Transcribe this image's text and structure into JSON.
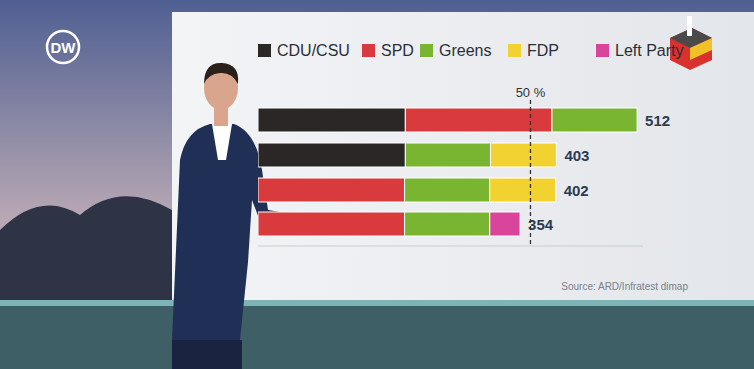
{
  "chart_data": {
    "type": "bar",
    "orientation": "horizontal",
    "stacked": true,
    "categories": [
      null,
      null,
      null,
      null
    ],
    "series": [
      {
        "name": "CDU/CSU",
        "color": "#2b2727",
        "values": [
          199,
          199,
          null,
          null
        ]
      },
      {
        "name": "SPD",
        "color": "#d93a3d",
        "values": [
          198,
          null,
          198,
          198
        ]
      },
      {
        "name": "Greens",
        "color": "#79b531",
        "values": [
          115,
          115,
          115,
          115
        ]
      },
      {
        "name": "FDP",
        "color": "#f2d230",
        "values": [
          null,
          89,
          89,
          null
        ]
      },
      {
        "name": "Left Party",
        "color": "#d8459a",
        "values": [
          null,
          null,
          null,
          41
        ]
      }
    ],
    "totals": [
      512,
      403,
      402,
      354
    ],
    "annotations": [
      {
        "value": 368,
        "label": "50 %"
      }
    ],
    "xlim": [
      0,
      520
    ],
    "tick_labels": false,
    "legend": "top",
    "source": "Source: ARD/Infratest dimap",
    "logo": "DW"
  }
}
